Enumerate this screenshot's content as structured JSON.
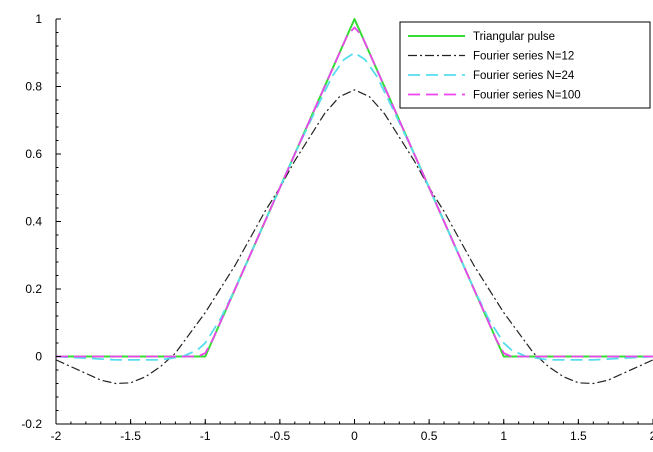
{
  "chart_data": {
    "type": "line",
    "title": "",
    "xlabel": "",
    "ylabel": "",
    "xlim": [
      -2,
      2
    ],
    "ylim": [
      -0.2,
      1
    ],
    "x_ticks": [
      -2,
      -1.5,
      -1,
      -0.5,
      0,
      0.5,
      1,
      1.5,
      2
    ],
    "x_tick_labels": [
      "-2",
      "-1.5",
      "-1",
      "-0.5",
      "0",
      "0.5",
      "1",
      "1.5",
      "2"
    ],
    "y_ticks": [
      -0.2,
      0,
      0.2,
      0.4,
      0.6,
      0.8,
      1
    ],
    "y_tick_labels": [
      "-0.2",
      "0",
      "0.2",
      "0.4",
      "0.6",
      "0.8",
      "1"
    ],
    "grid": false,
    "legend_position": "top-right",
    "series": [
      {
        "name": "Triangular pulse",
        "color": "#33dd33",
        "style": "solid",
        "points": [
          [
            -2,
            0
          ],
          [
            -1,
            0
          ],
          [
            0,
            1
          ],
          [
            1,
            0
          ],
          [
            2,
            0
          ]
        ]
      },
      {
        "name": "Fourier series N=12",
        "color": "#222222",
        "style": "dashdot",
        "points": [
          [
            -2,
            -0.01
          ],
          [
            -1.9,
            -0.03
          ],
          [
            -1.8,
            -0.05
          ],
          [
            -1.7,
            -0.07
          ],
          [
            -1.6,
            -0.08
          ],
          [
            -1.5,
            -0.078
          ],
          [
            -1.4,
            -0.06
          ],
          [
            -1.3,
            -0.03
          ],
          [
            -1.2,
            0.01
          ],
          [
            -1.1,
            0.07
          ],
          [
            -1.0,
            0.13
          ],
          [
            -0.9,
            0.2
          ],
          [
            -0.8,
            0.27
          ],
          [
            -0.7,
            0.35
          ],
          [
            -0.6,
            0.43
          ],
          [
            -0.5,
            0.5
          ],
          [
            -0.4,
            0.58
          ],
          [
            -0.3,
            0.65
          ],
          [
            -0.2,
            0.72
          ],
          [
            -0.1,
            0.77
          ],
          [
            0,
            0.79
          ],
          [
            0.1,
            0.77
          ],
          [
            0.2,
            0.72
          ],
          [
            0.3,
            0.65
          ],
          [
            0.4,
            0.58
          ],
          [
            0.5,
            0.5
          ],
          [
            0.6,
            0.43
          ],
          [
            0.7,
            0.35
          ],
          [
            0.8,
            0.27
          ],
          [
            0.9,
            0.2
          ],
          [
            1.0,
            0.13
          ],
          [
            1.1,
            0.07
          ],
          [
            1.2,
            0.01
          ],
          [
            1.3,
            -0.03
          ],
          [
            1.4,
            -0.06
          ],
          [
            1.5,
            -0.078
          ],
          [
            1.6,
            -0.08
          ],
          [
            1.7,
            -0.07
          ],
          [
            1.8,
            -0.05
          ],
          [
            1.9,
            -0.03
          ],
          [
            2,
            -0.01
          ]
        ]
      },
      {
        "name": "Fourier series N=24",
        "color": "#55ddee",
        "style": "dashed",
        "points": [
          [
            -2,
            0.0
          ],
          [
            -1.6,
            -0.01
          ],
          [
            -1.3,
            -0.01
          ],
          [
            -1.15,
            0.0
          ],
          [
            -1.05,
            0.02
          ],
          [
            -1.0,
            0.04
          ],
          [
            -0.9,
            0.11
          ],
          [
            -0.8,
            0.2
          ],
          [
            -0.6,
            0.4
          ],
          [
            -0.4,
            0.6
          ],
          [
            -0.25,
            0.74
          ],
          [
            -0.15,
            0.83
          ],
          [
            -0.07,
            0.88
          ],
          [
            0,
            0.9
          ],
          [
            0.07,
            0.88
          ],
          [
            0.15,
            0.83
          ],
          [
            0.25,
            0.74
          ],
          [
            0.4,
            0.6
          ],
          [
            0.6,
            0.4
          ],
          [
            0.8,
            0.2
          ],
          [
            0.9,
            0.11
          ],
          [
            1.0,
            0.04
          ],
          [
            1.05,
            0.02
          ],
          [
            1.15,
            0.0
          ],
          [
            1.3,
            -0.01
          ],
          [
            1.6,
            -0.01
          ],
          [
            2,
            0.0
          ]
        ]
      },
      {
        "name": "Fourier series N=100",
        "color": "#ee44ee",
        "style": "dashed",
        "points": [
          [
            -2,
            0.0
          ],
          [
            -1.05,
            0.0
          ],
          [
            -1.0,
            0.01
          ],
          [
            -0.95,
            0.05
          ],
          [
            -0.5,
            0.5
          ],
          [
            -0.05,
            0.95
          ],
          [
            0,
            0.975
          ],
          [
            0.05,
            0.95
          ],
          [
            0.5,
            0.5
          ],
          [
            0.95,
            0.05
          ],
          [
            1.0,
            0.01
          ],
          [
            1.05,
            0.0
          ],
          [
            2,
            0.0
          ]
        ]
      }
    ]
  }
}
